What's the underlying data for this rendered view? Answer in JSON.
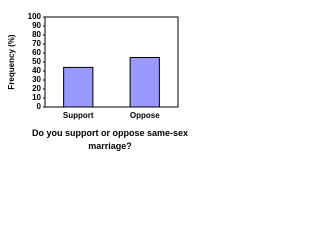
{
  "chart_data": {
    "type": "bar",
    "x_label": "Do you support or oppose same-sex marriage?",
    "y_label": "Frequency (%)",
    "categories": [
      "Support",
      "Oppose"
    ],
    "values": [
      44,
      55
    ],
    "color": "#9999ff",
    "ylim": [
      0,
      100
    ],
    "yticks": [
      0,
      10,
      20,
      30,
      40,
      50,
      60,
      70,
      80,
      90,
      100
    ],
    "grid": false
  }
}
